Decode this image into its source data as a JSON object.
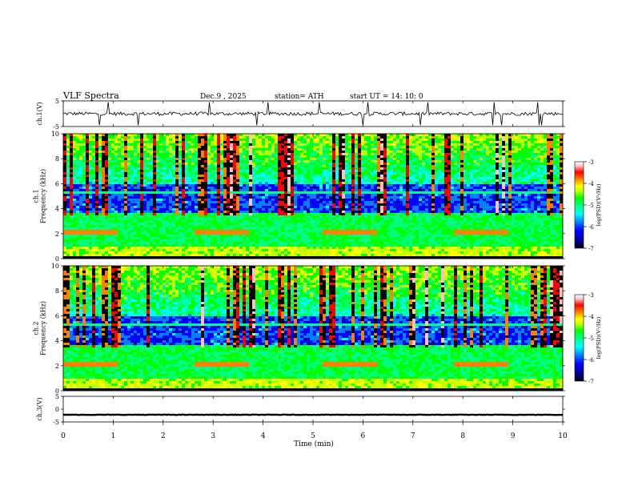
{
  "header": {
    "title": "VLF  Spectra",
    "date": "Dec.9  , 2025",
    "station": "station= ATH",
    "start": "start  UT  =   14: 10: 0"
  },
  "chart_data": [
    {
      "type": "line",
      "name": "ch1-waveform",
      "ylabel": "ch.1(V)",
      "ylim": [
        -5,
        5
      ],
      "yticks": [
        "5",
        "-5"
      ],
      "xlim": [
        0,
        10
      ],
      "baseline": 0
    },
    {
      "type": "heatmap",
      "name": "ch1-spectrogram",
      "ylabel": "ch.1\nFrequency  (kHz)",
      "ylim": [
        0,
        10
      ],
      "yticks": [
        "10",
        "8",
        "6",
        "4",
        "2",
        "0"
      ],
      "xlim": [
        0,
        10
      ],
      "colorbar": {
        "label": "log(PSD)(V²/Hz)",
        "range": [
          -7,
          -3
        ],
        "ticks": [
          "-3",
          "-4",
          "-5",
          "-6",
          "-7"
        ]
      }
    },
    {
      "type": "heatmap",
      "name": "ch2-spectrogram",
      "ylabel": "ch.2\nFrequency  (kHz)",
      "ylim": [
        0,
        10
      ],
      "yticks": [
        "10",
        "8",
        "6",
        "4",
        "2",
        "0"
      ],
      "xlim": [
        0,
        10
      ],
      "colorbar": {
        "label": "log(PSD)(V²/Hz)",
        "range": [
          -7,
          -3
        ],
        "ticks": [
          "-3",
          "-4",
          "-5",
          "-6",
          "-7"
        ]
      }
    },
    {
      "type": "line",
      "name": "ch3-waveform",
      "ylabel": "ch.3(V)",
      "ylim": [
        -5,
        5
      ],
      "yticks": [
        "5",
        "0",
        "-5"
      ],
      "xlim": [
        0,
        10
      ],
      "baseline": -2.2
    }
  ],
  "xaxis": {
    "label": "Time  (min)",
    "range": [
      0,
      10
    ],
    "ticks": [
      "0",
      "1",
      "2",
      "3",
      "4",
      "5",
      "6",
      "7",
      "8",
      "9",
      "10"
    ]
  },
  "colors": {
    "colormap": [
      "#000000",
      "#00008b",
      "#0000ff",
      "#0080ff",
      "#00ffff",
      "#00ff80",
      "#00ff00",
      "#c0ff00",
      "#ffff00",
      "#ff8000",
      "#ff0000",
      "#ffc0c0",
      "#ffffff"
    ]
  }
}
